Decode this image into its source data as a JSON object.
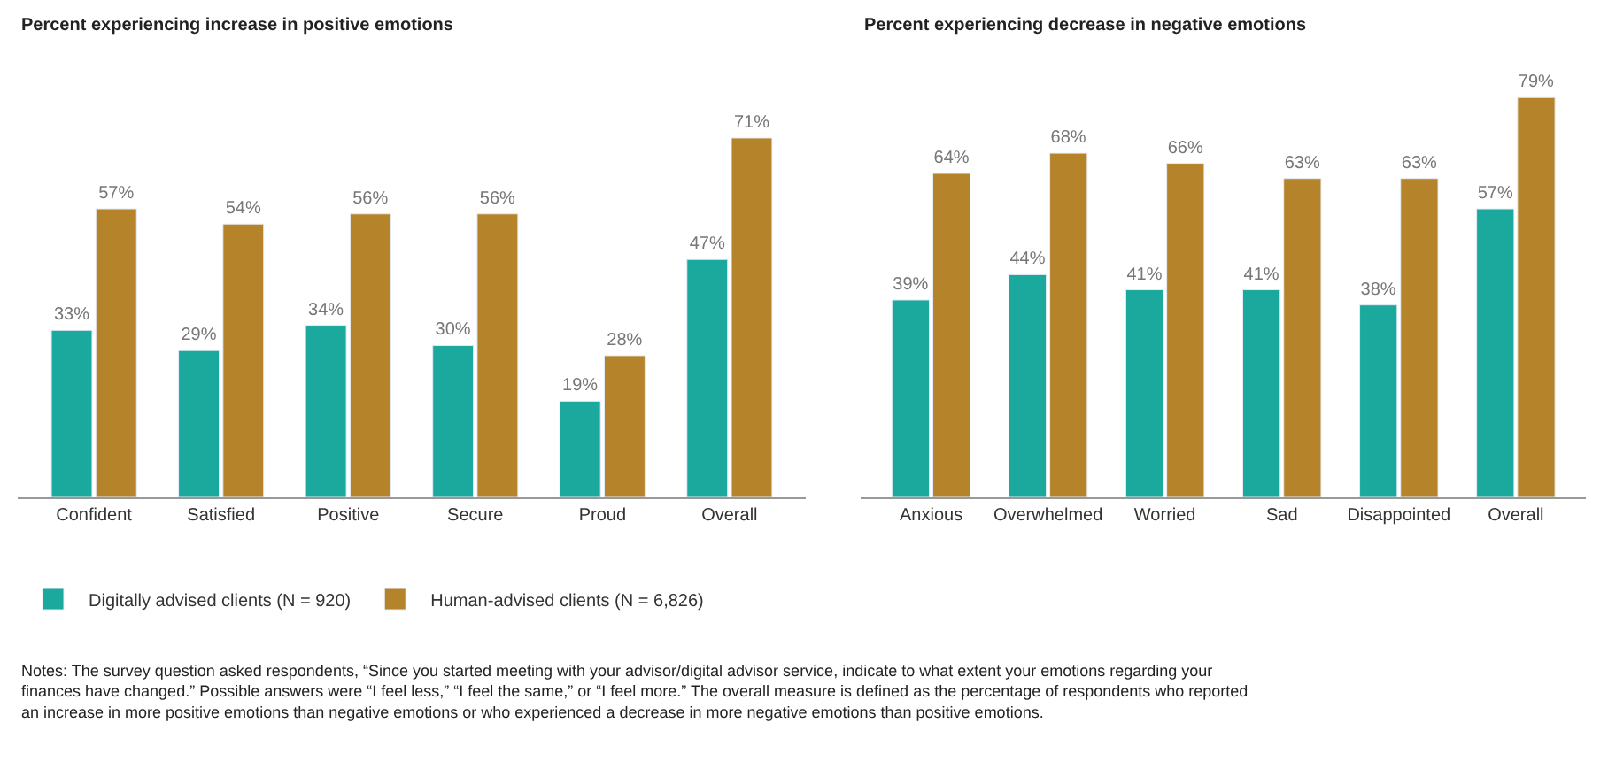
{
  "chart_data": [
    {
      "type": "bar",
      "title": "Percent experiencing increase in positive emotions",
      "categories": [
        "Confident",
        "Satisfied",
        "Positive",
        "Secure",
        "Proud",
        "Overall"
      ],
      "series": [
        {
          "name": "Digitally advised clients (N = 920)",
          "color": "#1aa99c",
          "values": [
            33,
            29,
            34,
            30,
            19,
            47
          ],
          "value_labels": [
            "33%",
            "29%",
            "34%",
            "30%",
            "19%",
            "47%"
          ]
        },
        {
          "name": "Human-advised clients (N = 6,826)",
          "color": "#b5842a",
          "values": [
            57,
            54,
            56,
            56,
            28,
            71
          ],
          "value_labels": [
            "57%",
            "54%",
            "56%",
            "56%",
            "28%",
            "71%"
          ]
        }
      ],
      "legend": "bottom",
      "annotations": [
        "Notes: The survey question asked respondents, “Since you started meeting with your advisor/digital advisor service, indicate to what extent your emotions regarding your finances have changed.” Possible answers were “I feel less,” “I feel the same,” or “I feel more.” The overall measure is defined as the percentage of respondents who reported an increase in more positive emotions than negative emotions or who experienced a decrease in more negative emotions than positive emotions."
      ]
    },
    {
      "type": "bar",
      "title": "Percent experiencing decrease in negative emotions",
      "categories": [
        "Anxious",
        "Overwhelmed",
        "Worried",
        "Sad",
        "Disappointed",
        "Overall"
      ],
      "series": [
        {
          "color": "#1aa99c",
          "values": [
            39,
            44,
            41,
            41,
            38,
            57
          ],
          "value_labels": [
            "39%",
            "44%",
            "41%",
            "41%",
            "38%",
            "57%"
          ]
        },
        {
          "color": "#b5842a",
          "values": [
            64,
            68,
            66,
            63,
            63,
            79
          ],
          "value_labels": [
            "64%",
            "68%",
            "66%",
            "63%",
            "63%",
            "79%"
          ]
        }
      ]
    }
  ]
}
